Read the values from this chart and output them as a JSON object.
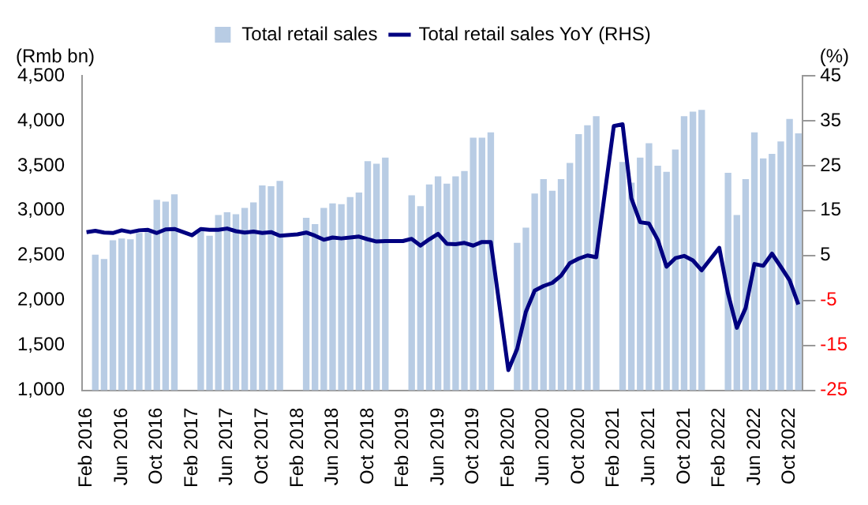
{
  "chart_data": {
    "type": "bar",
    "ylabel": "(Rmb bn)",
    "y2label": "(%)",
    "categories": [
      "Feb 2016",
      null,
      null,
      null,
      "Jun 2016",
      null,
      null,
      null,
      "Oct 2016",
      null,
      null,
      null,
      "Feb 2017",
      null,
      null,
      null,
      "Jun 2017",
      null,
      null,
      null,
      "Oct 2017",
      null,
      null,
      null,
      "Feb 2018",
      null,
      null,
      null,
      "Jun 2018",
      null,
      null,
      null,
      "Oct 2018",
      null,
      null,
      null,
      "Feb 2019",
      null,
      null,
      null,
      "Jun 2019",
      null,
      null,
      null,
      "Oct 2019",
      null,
      null,
      null,
      "Feb 2020",
      null,
      null,
      null,
      "Jun 2020",
      null,
      null,
      null,
      "Oct 2020",
      null,
      null,
      null,
      "Feb 2021",
      null,
      null,
      null,
      "Jun 2021",
      null,
      null,
      null,
      "Oct 2021",
      null,
      null,
      null,
      "Feb 2022",
      null,
      null,
      null,
      "Jun 2022",
      null,
      null,
      null,
      "Oct 2022",
      null
    ],
    "series": [
      {
        "name": "Total retail sales",
        "color": "#b8cce4",
        "values": [
          null,
          2510,
          2460,
          2670,
          2690,
          2680,
          2750,
          2760,
          3120,
          3100,
          3180,
          null,
          null,
          2770,
          2720,
          2950,
          2980,
          2960,
          3030,
          3090,
          3280,
          3270,
          3330,
          null,
          null,
          2920,
          2850,
          3030,
          3080,
          3070,
          3150,
          3200,
          3550,
          3520,
          3590,
          null,
          null,
          3170,
          3050,
          3290,
          3380,
          3300,
          3380,
          3440,
          3810,
          3810,
          3870,
          null,
          null,
          2640,
          2810,
          3190,
          3350,
          3220,
          3350,
          3530,
          3850,
          3950,
          4050,
          null,
          null,
          3540,
          3310,
          3590,
          3750,
          3500,
          3430,
          3680,
          4050,
          4100,
          4120,
          null,
          null,
          3420,
          2950,
          3350,
          3870,
          3580,
          3630,
          3770,
          4020,
          3860
        ]
      },
      {
        "name": "Total retail sales YoY (RHS)",
        "type": "line",
        "axis": "y2",
        "color": "#000080",
        "values": [
          10.2,
          10.5,
          10.1,
          10.0,
          10.6,
          10.2,
          10.6,
          10.7,
          10.0,
          10.8,
          10.9,
          null,
          9.5,
          10.9,
          10.7,
          10.7,
          11.0,
          10.4,
          10.1,
          10.3,
          10.0,
          10.2,
          9.4,
          null,
          9.7,
          10.1,
          9.4,
          8.5,
          9.0,
          8.8,
          9.0,
          9.2,
          8.6,
          8.1,
          8.2,
          null,
          8.2,
          8.7,
          7.2,
          8.6,
          9.8,
          7.6,
          7.5,
          7.8,
          7.2,
          8.0,
          8.0,
          null,
          -20.5,
          -15.8,
          -7.5,
          -2.8,
          -1.8,
          -1.1,
          0.5,
          3.3,
          4.3,
          5.0,
          4.6,
          null,
          33.8,
          34.2,
          17.7,
          12.4,
          12.1,
          8.5,
          2.5,
          4.4,
          4.9,
          3.9,
          1.7,
          null,
          6.7,
          -3.5,
          -11.1,
          -6.7,
          3.1,
          2.7,
          5.4,
          2.5,
          -0.5,
          -5.9
        ]
      }
    ],
    "ylim": [
      1000,
      4500
    ],
    "yticks": [
      {
        "value": 1000,
        "label": "1,000"
      },
      {
        "value": 1500,
        "label": "1,500"
      },
      {
        "value": 2000,
        "label": "2,000"
      },
      {
        "value": 2500,
        "label": "2,500"
      },
      {
        "value": 3000,
        "label": "3,000"
      },
      {
        "value": 3500,
        "label": "3,500"
      },
      {
        "value": 4000,
        "label": "4,000"
      },
      {
        "value": 4500,
        "label": "4,500"
      }
    ],
    "y2lim": [
      -25,
      45
    ],
    "y2ticks": [
      -25,
      -15,
      -5,
      5,
      15,
      25,
      35,
      45
    ],
    "legend": "top",
    "grid": false
  }
}
